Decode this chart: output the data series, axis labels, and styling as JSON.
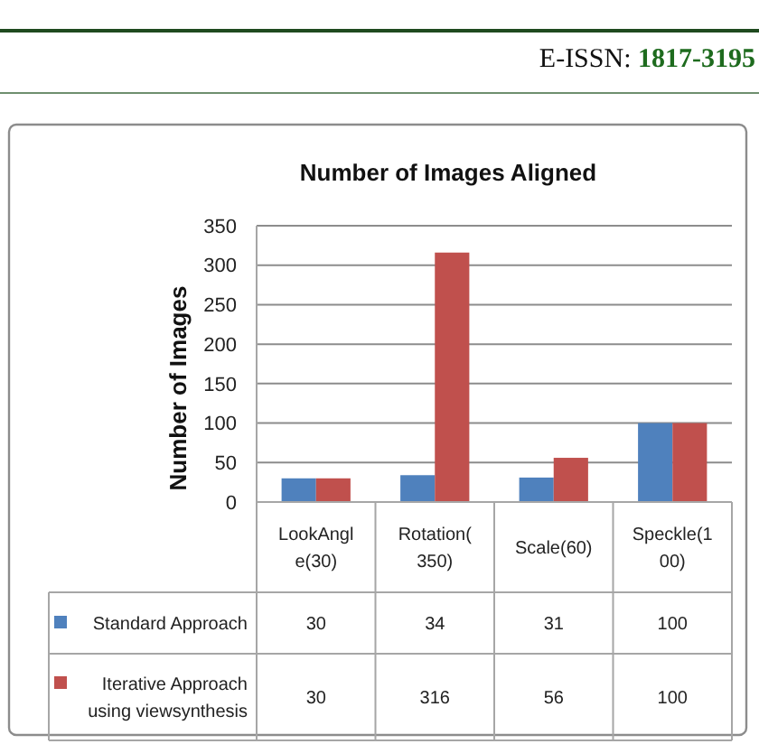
{
  "chart_data": {
    "type": "bar",
    "title": "Number of Images Aligned",
    "ylabel": "Number of Images",
    "categories": [
      "LookAngle(30)",
      "Rotation(350)",
      "Scale(60)",
      "Speckle(100)"
    ],
    "series": [
      {
        "name": "Standard Approach",
        "color": "#4f81bd",
        "values": [
          30,
          34,
          31,
          100
        ]
      },
      {
        "name": "Iterative Approach using viewsynthesis",
        "color": "#c0504d",
        "values": [
          30,
          316,
          56,
          100
        ]
      }
    ],
    "ylim": [
      0,
      350
    ],
    "yticks": [
      0,
      50,
      100,
      150,
      200,
      250,
      300,
      350
    ],
    "grid": "y",
    "legend": "bottom",
    "data_labels": true,
    "annotations": [
      "E-ISSN: 1817-3195"
    ]
  }
}
